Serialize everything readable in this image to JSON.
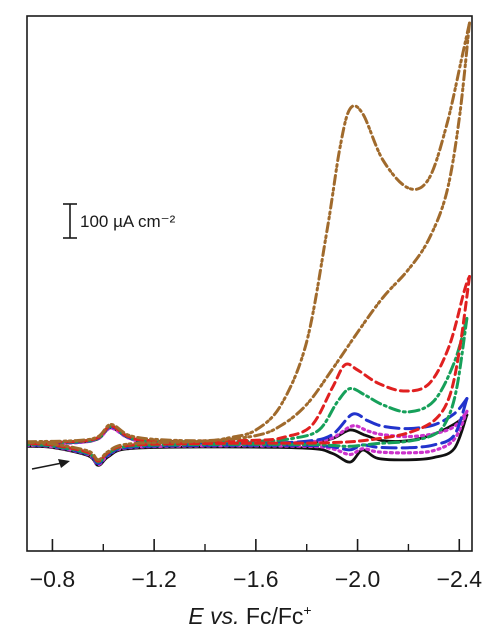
{
  "chart_data": {
    "type": "line",
    "xlabel": "E vs. Fc/Fc⁺",
    "xlabel_parts": {
      "italic": "E vs.",
      "normal": " Fc/Fc",
      "sup": "+"
    },
    "xlim": [
      -0.7,
      -2.45
    ],
    "x_axis_reversed": true,
    "x_ticks": [
      -0.8,
      -1.2,
      -1.6,
      -2.0,
      -2.4
    ],
    "x_tick_labels": [
      "−0.8",
      "−1.2",
      "−1.6",
      "−2.0",
      "−2.4"
    ],
    "ylabel": "",
    "ylim": [
      -480,
      1820
    ],
    "y_unit": "µA cm⁻²",
    "y_ticks": false,
    "grid": false,
    "scale_bar": {
      "value": 100,
      "label": "100 µA cm⁻²"
    },
    "scan_direction_arrow": true,
    "series": [
      {
        "color": "#111111",
        "dash": "solid",
        "forward": [
          [
            -0.7,
            -20
          ],
          [
            -0.9,
            -13
          ],
          [
            -0.98,
            2
          ],
          [
            -1.03,
            50
          ],
          [
            -1.1,
            6
          ],
          [
            -1.2,
            -12
          ],
          [
            -1.6,
            -18
          ],
          [
            -1.8,
            -13
          ],
          [
            -1.9,
            3
          ],
          [
            -1.97,
            40
          ],
          [
            -2.03,
            18
          ],
          [
            -2.1,
            -6
          ],
          [
            -2.2,
            -6
          ],
          [
            -2.3,
            22
          ],
          [
            -2.38,
            65
          ],
          [
            -2.43,
            105
          ]
        ],
        "reverse": [
          [
            -2.43,
            105
          ],
          [
            -2.38,
            -40
          ],
          [
            -2.3,
            -78
          ],
          [
            -2.2,
            -88
          ],
          [
            -2.08,
            -82
          ],
          [
            -2.02,
            -46
          ],
          [
            -1.97,
            -98
          ],
          [
            -1.9,
            -60
          ],
          [
            -1.8,
            -38
          ],
          [
            -1.4,
            -33
          ],
          [
            -1.1,
            -40
          ],
          [
            -1.02,
            -74
          ],
          [
            -0.98,
            -112
          ],
          [
            -0.94,
            -70
          ],
          [
            -0.8,
            -35
          ],
          [
            -0.7,
            -30
          ]
        ]
      },
      {
        "color": "#cc33cc",
        "dash": "dot",
        "forward": [
          [
            -0.7,
            -22
          ],
          [
            -0.9,
            -14
          ],
          [
            -0.98,
            3
          ],
          [
            -1.03,
            48
          ],
          [
            -1.1,
            6
          ],
          [
            -1.2,
            -12
          ],
          [
            -1.6,
            -17
          ],
          [
            -1.8,
            -12
          ],
          [
            -1.9,
            6
          ],
          [
            -1.98,
            58
          ],
          [
            -2.04,
            36
          ],
          [
            -2.1,
            20
          ],
          [
            -2.2,
            12
          ],
          [
            -2.3,
            24
          ],
          [
            -2.38,
            55
          ],
          [
            -2.43,
            120
          ]
        ],
        "reverse": [
          [
            -2.43,
            120
          ],
          [
            -2.38,
            0
          ],
          [
            -2.3,
            -48
          ],
          [
            -2.2,
            -58
          ],
          [
            -2.08,
            -54
          ],
          [
            -2.02,
            -40
          ],
          [
            -1.97,
            -65
          ],
          [
            -1.9,
            -40
          ],
          [
            -1.8,
            -30
          ],
          [
            -1.4,
            -28
          ],
          [
            -1.1,
            -36
          ],
          [
            -1.02,
            -68
          ],
          [
            -0.98,
            -108
          ],
          [
            -0.94,
            -66
          ],
          [
            -0.8,
            -32
          ],
          [
            -0.7,
            -26
          ]
        ]
      },
      {
        "color": "#2233cc",
        "dash": "longdash",
        "forward": [
          [
            -0.7,
            -18
          ],
          [
            -0.9,
            -12
          ],
          [
            -0.98,
            5
          ],
          [
            -1.03,
            54
          ],
          [
            -1.1,
            8
          ],
          [
            -1.2,
            -10
          ],
          [
            -1.6,
            -15
          ],
          [
            -1.8,
            -8
          ],
          [
            -1.9,
            20
          ],
          [
            -1.98,
            108
          ],
          [
            -2.04,
            80
          ],
          [
            -2.1,
            56
          ],
          [
            -2.2,
            46
          ],
          [
            -2.3,
            62
          ],
          [
            -2.38,
            110
          ],
          [
            -2.43,
            175
          ]
        ],
        "reverse": [
          [
            -2.43,
            175
          ],
          [
            -2.38,
            18
          ],
          [
            -2.3,
            -24
          ],
          [
            -2.2,
            -36
          ],
          [
            -2.08,
            -34
          ],
          [
            -2.02,
            -24
          ],
          [
            -1.97,
            -45
          ],
          [
            -1.9,
            -32
          ],
          [
            -1.8,
            -26
          ],
          [
            -1.4,
            -26
          ],
          [
            -1.1,
            -34
          ],
          [
            -1.02,
            -66
          ],
          [
            -0.98,
            -104
          ],
          [
            -0.94,
            -64
          ],
          [
            -0.8,
            -30
          ],
          [
            -0.7,
            -24
          ]
        ]
      },
      {
        "color": "#16a05a",
        "dash": "dashdot",
        "forward": [
          [
            -0.7,
            -16
          ],
          [
            -0.9,
            -10
          ],
          [
            -0.98,
            6
          ],
          [
            -1.03,
            56
          ],
          [
            -1.1,
            10
          ],
          [
            -1.2,
            -8
          ],
          [
            -1.6,
            -8
          ],
          [
            -1.75,
            5
          ],
          [
            -1.85,
            42
          ],
          [
            -1.92,
            160
          ],
          [
            -1.97,
            218
          ],
          [
            -2.03,
            190
          ],
          [
            -2.1,
            148
          ],
          [
            -2.2,
            118
          ],
          [
            -2.3,
            165
          ],
          [
            -2.38,
            330
          ],
          [
            -2.43,
            520
          ]
        ],
        "reverse": [
          [
            -2.43,
            520
          ],
          [
            -2.39,
            220
          ],
          [
            -2.35,
            80
          ],
          [
            -2.3,
            20
          ],
          [
            -2.2,
            -8
          ],
          [
            -2.08,
            -18
          ],
          [
            -1.97,
            -30
          ],
          [
            -1.9,
            -26
          ],
          [
            -1.8,
            -22
          ],
          [
            -1.4,
            -22
          ],
          [
            -1.1,
            -30
          ],
          [
            -1.02,
            -60
          ],
          [
            -0.98,
            -98
          ],
          [
            -0.94,
            -60
          ],
          [
            -0.8,
            -28
          ],
          [
            -0.7,
            -22
          ]
        ]
      },
      {
        "color": "#e02020",
        "dash": "dash",
        "forward": [
          [
            -0.7,
            -14
          ],
          [
            -0.9,
            -8
          ],
          [
            -0.98,
            8
          ],
          [
            -1.03,
            58
          ],
          [
            -1.1,
            12
          ],
          [
            -1.2,
            -6
          ],
          [
            -1.6,
            -4
          ],
          [
            -1.72,
            12
          ],
          [
            -1.82,
            60
          ],
          [
            -1.9,
            220
          ],
          [
            -1.95,
            320
          ],
          [
            -2.0,
            298
          ],
          [
            -2.08,
            242
          ],
          [
            -2.18,
            208
          ],
          [
            -2.28,
            238
          ],
          [
            -2.36,
            400
          ],
          [
            -2.42,
            640
          ],
          [
            -2.44,
            700
          ]
        ],
        "reverse": [
          [
            -2.44,
            700
          ],
          [
            -2.4,
            380
          ],
          [
            -2.36,
            180
          ],
          [
            -2.3,
            80
          ],
          [
            -2.2,
            28
          ],
          [
            -2.1,
            6
          ],
          [
            -2.0,
            -8
          ],
          [
            -1.9,
            -14
          ],
          [
            -1.8,
            -16
          ],
          [
            -1.4,
            -18
          ],
          [
            -1.1,
            -26
          ],
          [
            -1.02,
            -56
          ],
          [
            -0.98,
            -94
          ],
          [
            -0.94,
            -56
          ],
          [
            -0.8,
            -24
          ],
          [
            -0.7,
            -18
          ]
        ]
      },
      {
        "color": "#a06a2c",
        "dash": "dashdotdot",
        "forward": [
          [
            -0.7,
            -10
          ],
          [
            -0.9,
            -5
          ],
          [
            -0.98,
            12
          ],
          [
            -1.03,
            64
          ],
          [
            -1.1,
            18
          ],
          [
            -1.2,
            0
          ],
          [
            -1.4,
            -6
          ],
          [
            -1.5,
            8
          ],
          [
            -1.6,
            40
          ],
          [
            -1.7,
            150
          ],
          [
            -1.8,
            420
          ],
          [
            -1.88,
            900
          ],
          [
            -1.93,
            1250
          ],
          [
            -1.97,
            1420
          ],
          [
            -2.02,
            1400
          ],
          [
            -2.1,
            1200
          ],
          [
            -2.2,
            1080
          ],
          [
            -2.28,
            1120
          ],
          [
            -2.35,
            1350
          ],
          [
            -2.41,
            1640
          ],
          [
            -2.44,
            1790
          ]
        ],
        "reverse": [
          [
            -2.44,
            1790
          ],
          [
            -2.4,
            1380
          ],
          [
            -2.35,
            1060
          ],
          [
            -2.28,
            860
          ],
          [
            -2.2,
            730
          ],
          [
            -2.1,
            610
          ],
          [
            -2.0,
            460
          ],
          [
            -1.9,
            300
          ],
          [
            -1.8,
            150
          ],
          [
            -1.7,
            60
          ],
          [
            -1.6,
            16
          ],
          [
            -1.4,
            -8
          ],
          [
            -1.1,
            -20
          ],
          [
            -1.02,
            -52
          ],
          [
            -0.98,
            -88
          ],
          [
            -0.94,
            -50
          ],
          [
            -0.8,
            -20
          ],
          [
            -0.7,
            -14
          ]
        ]
      }
    ]
  }
}
